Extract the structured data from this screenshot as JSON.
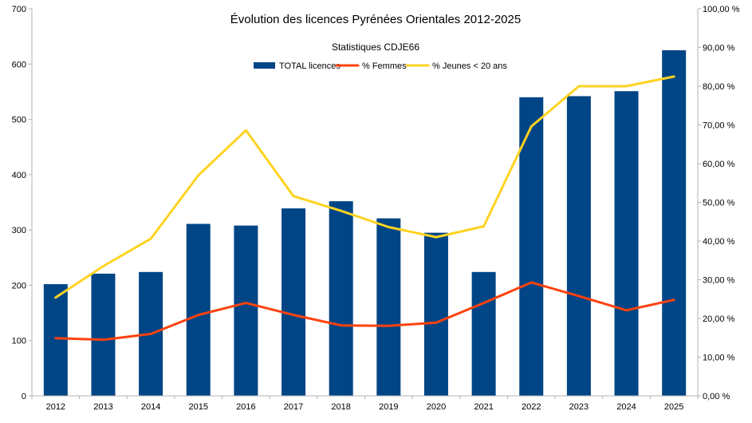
{
  "chart_data": {
    "type": "bar",
    "title": "Évolution des licences Pyrénées Orientales 2012-2025",
    "subtitle": "Statistiques CDJE66",
    "categories": [
      "2012",
      "2013",
      "2014",
      "2015",
      "2016",
      "2017",
      "2018",
      "2019",
      "2020",
      "2021",
      "2022",
      "2023",
      "2024",
      "2025"
    ],
    "series": [
      {
        "name": "TOTAL licences",
        "type": "bar",
        "axis": "left",
        "color": "#004586",
        "values": [
          202,
          221,
          224,
          311,
          308,
          339,
          352,
          321,
          295,
          224,
          540,
          542,
          551,
          625
        ]
      },
      {
        "name": "% Femmes",
        "type": "line",
        "axis": "right",
        "color": "#ff420e",
        "values": [
          14.9,
          14.5,
          16.0,
          20.9,
          24.0,
          20.9,
          18.2,
          18.1,
          18.9,
          24.0,
          29.3,
          25.8,
          22.1,
          24.8
        ]
      },
      {
        "name": "% Jeunes < 20 ans",
        "type": "line",
        "axis": "right",
        "color": "#ffd320",
        "values": [
          25.4,
          33.5,
          40.6,
          57.0,
          68.6,
          51.6,
          47.8,
          43.6,
          41.0,
          43.8,
          69.6,
          80.0,
          80.0,
          82.5
        ]
      }
    ],
    "y_left": {
      "min": 0,
      "max": 700,
      "step": 100,
      "ticks": [
        "0",
        "100",
        "200",
        "300",
        "400",
        "500",
        "600",
        "700"
      ]
    },
    "y_right": {
      "min": 0,
      "max": 100,
      "step": 10,
      "ticks": [
        "0,00 %",
        "10,00 %",
        "20,00 %",
        "30,00 %",
        "40,00 %",
        "50,00 %",
        "60,00 %",
        "70,00 %",
        "80,00 %",
        "90,00 %",
        "100,00 %"
      ]
    },
    "grid": false,
    "legend_position": "top-center"
  }
}
